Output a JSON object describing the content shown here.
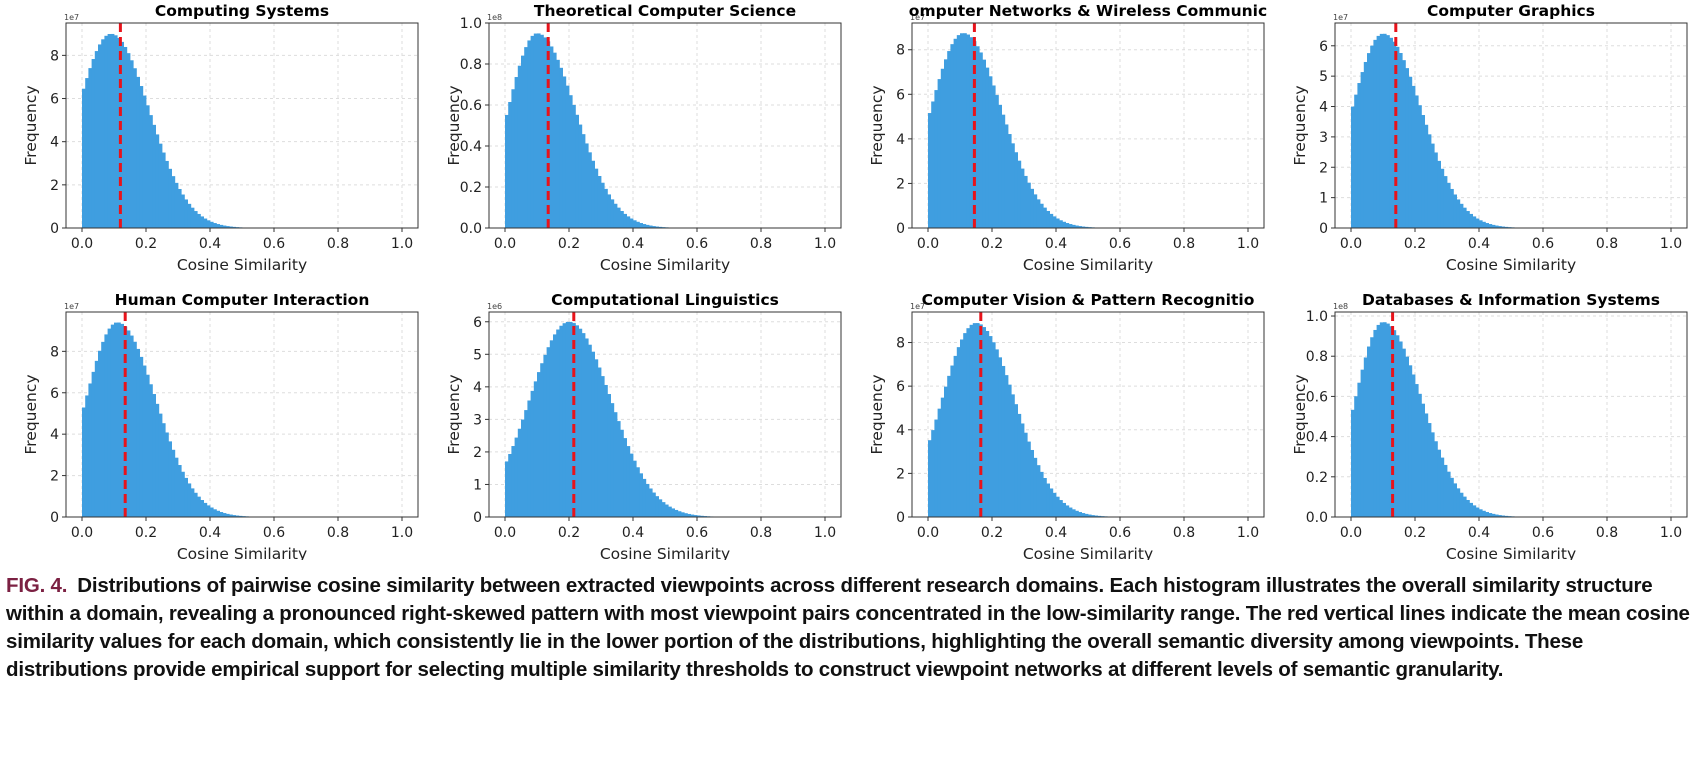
{
  "chart_data": [
    {
      "type": "bar",
      "title": "Computing Systems",
      "xlabel": "Cosine Similarity",
      "ylabel": "Frequency",
      "scale_label": "1e7",
      "yticks": [
        0,
        2,
        4,
        6,
        8
      ],
      "ylim": [
        0,
        9.5
      ],
      "xlim": [
        0,
        1
      ],
      "xticks": [
        "0.0",
        "0.2",
        "0.4",
        "0.6",
        "0.8",
        "1.0"
      ],
      "mode": 0.09,
      "peak": 9.0,
      "value_at_zero": 6.2,
      "right_width": 0.12,
      "mean": 0.12,
      "grid": true
    },
    {
      "type": "bar",
      "title": "Theoretical Computer Science",
      "xlabel": "Cosine Similarity",
      "ylabel": "Frequency",
      "scale_label": "1e8",
      "yticks": [
        0.0,
        0.2,
        0.4,
        0.6,
        0.8,
        1.0
      ],
      "ylim": [
        0,
        1.0
      ],
      "xlim": [
        0,
        1
      ],
      "xticks": [
        "0.0",
        "0.2",
        "0.4",
        "0.6",
        "0.8",
        "1.0"
      ],
      "mode": 0.1,
      "peak": 0.95,
      "value_at_zero": 0.52,
      "right_width": 0.12,
      "mean": 0.135,
      "grid": true
    },
    {
      "type": "bar",
      "title": "omputer Networks & Wireless Communic",
      "xlabel": "Cosine Similarity",
      "ylabel": "Frequency",
      "scale_label": "1e7",
      "yticks": [
        0,
        2,
        4,
        6,
        8
      ],
      "ylim": [
        0,
        9.2
      ],
      "xlim": [
        0,
        1
      ],
      "xticks": [
        "0.0",
        "0.2",
        "0.4",
        "0.6",
        "0.8",
        "1.0"
      ],
      "mode": 0.11,
      "peak": 8.75,
      "value_at_zero": 4.9,
      "right_width": 0.12,
      "mean": 0.145,
      "grid": true
    },
    {
      "type": "bar",
      "title": "Computer Graphics",
      "xlabel": "Cosine Similarity",
      "ylabel": "Frequency",
      "scale_label": "1e7",
      "yticks": [
        0,
        1,
        2,
        3,
        4,
        5,
        6
      ],
      "ylim": [
        0,
        6.75
      ],
      "xlim": [
        0,
        1
      ],
      "xticks": [
        "0.0",
        "0.2",
        "0.4",
        "0.6",
        "0.8",
        "1.0"
      ],
      "mode": 0.1,
      "peak": 6.4,
      "value_at_zero": 3.8,
      "right_width": 0.12,
      "mean": 0.14,
      "grid": true
    },
    {
      "type": "bar",
      "title": "Human Computer Interaction",
      "xlabel": "Cosine Similarity",
      "ylabel": "Frequency",
      "scale_label": "1e7",
      "yticks": [
        0,
        2,
        4,
        6,
        8
      ],
      "ylim": [
        0,
        9.9
      ],
      "xlim": [
        0,
        1
      ],
      "xticks": [
        "0.0",
        "0.2",
        "0.4",
        "0.6",
        "0.8",
        "1.0"
      ],
      "mode": 0.11,
      "peak": 9.4,
      "value_at_zero": 5.0,
      "right_width": 0.12,
      "mean": 0.135,
      "grid": true
    },
    {
      "type": "bar",
      "title": "Computational Linguistics",
      "xlabel": "Cosine Similarity",
      "ylabel": "Frequency",
      "scale_label": "1e6",
      "yticks": [
        0,
        1,
        2,
        3,
        4,
        5,
        6
      ],
      "ylim": [
        0,
        6.3
      ],
      "xlim": [
        0,
        1
      ],
      "xticks": [
        "0.0",
        "0.2",
        "0.4",
        "0.6",
        "0.8",
        "1.0"
      ],
      "mode": 0.2,
      "peak": 6.0,
      "value_at_zero": 1.6,
      "right_width": 0.13,
      "mean": 0.215,
      "grid": true
    },
    {
      "type": "bar",
      "title": "Computer Vision & Pattern Recognitio",
      "xlabel": "Cosine Similarity",
      "ylabel": "Frequency",
      "scale_label": "1e7",
      "yticks": [
        0,
        2,
        4,
        6,
        8
      ],
      "ylim": [
        0,
        9.4
      ],
      "xlim": [
        0,
        1
      ],
      "xticks": [
        "0.0",
        "0.2",
        "0.4",
        "0.6",
        "0.8",
        "1.0"
      ],
      "mode": 0.15,
      "peak": 8.9,
      "value_at_zero": 3.3,
      "right_width": 0.12,
      "mean": 0.165,
      "grid": true
    },
    {
      "type": "bar",
      "title": "Databases & Information Systems",
      "xlabel": "Cosine Similarity",
      "ylabel": "Frequency",
      "scale_label": "1e8",
      "yticks": [
        0.0,
        0.2,
        0.4,
        0.6,
        0.8,
        1.0
      ],
      "ylim": [
        0,
        1.02
      ],
      "xlim": [
        0,
        1
      ],
      "xticks": [
        "0.0",
        "0.2",
        "0.4",
        "0.6",
        "0.8",
        "1.0"
      ],
      "mode": 0.1,
      "peak": 0.97,
      "value_at_zero": 0.5,
      "right_width": 0.12,
      "mean": 0.13,
      "grid": true
    }
  ],
  "colors": {
    "bar": "#3f9ee0",
    "mean_line": "#e8131b",
    "caption_label": "#7b2042"
  },
  "caption": {
    "label": "FIG. 4.",
    "text": "Distributions of pairwise cosine similarity between extracted viewpoints across different research domains. Each histogram illustrates the overall similarity structure within a domain, revealing a pronounced right-skewed pattern with most viewpoint pairs concentrated in the low-similarity range. The red vertical lines indicate the mean cosine similarity values for each domain, which consistently lie in the lower portion of the distributions, highlighting the overall semantic diversity among viewpoints. These distributions provide empirical support for selecting multiple similarity thresholds to construct viewpoint networks at different levels of semantic granularity."
  }
}
